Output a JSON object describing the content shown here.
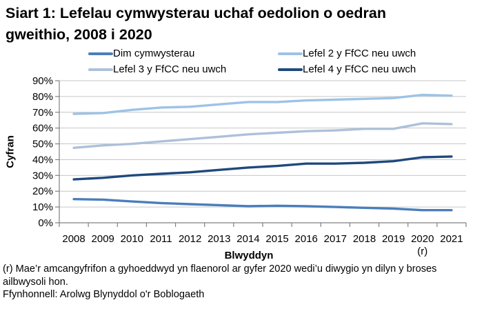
{
  "title": "Siart 1: Lefelau cymwysterau uchaf oedolion o oedran gweithio, 2008 i 2020",
  "footnotes": {
    "revision_note": "(r) Mae’r amcangyfrifon a gyhoeddwyd yn flaenorol ar gyfer 2020 wedi’u diwygio yn dilyn y broses ailbwysoli hon.",
    "source": "Ffynhonnell: Arolwg Blynyddol o'r Boblogaeth"
  },
  "chart_data": {
    "type": "line",
    "title": "Siart 1: Lefelau cymwysterau uchaf oedolion o oedran gweithio, 2008 i 2020",
    "categories": [
      "2008",
      "2009",
      "2010",
      "2011",
      "2012",
      "2013",
      "2014",
      "2015",
      "2016",
      "2017",
      "2018",
      "2019",
      "2020",
      "2021"
    ],
    "series": [
      {
        "name": "Dim cymwysterau",
        "color": "#4a7ebb",
        "values": [
          15,
          14.7,
          13.5,
          12.5,
          11.8,
          11.2,
          10.5,
          10.8,
          10.5,
          10,
          9.5,
          9,
          8,
          8
        ]
      },
      {
        "name": "Lefel 2 y FfCC neu uwch",
        "color": "#9dc3e6",
        "values": [
          69,
          69.5,
          71.5,
          73,
          73.5,
          75,
          76.5,
          76.5,
          77.5,
          78,
          78.5,
          79,
          81,
          80.5
        ]
      },
      {
        "name": "Lefel 3 y FfCC neu uwch",
        "color": "#aec0da",
        "values": [
          47.5,
          49,
          50,
          51.5,
          53,
          54.5,
          56,
          57,
          58,
          58.5,
          59.5,
          59.5,
          63,
          62.5
        ]
      },
      {
        "name": "Lefel 4 y FfCC neu uwch",
        "color": "#1f497d",
        "values": [
          27.5,
          28.5,
          30,
          31,
          32,
          33.5,
          35,
          36,
          37.5,
          37.5,
          38,
          39,
          41.5,
          42
        ]
      }
    ],
    "xlabel": "Blwyddyn",
    "ylabel": "Cyfran",
    "ylim": [
      0,
      90
    ],
    "yticks": [
      "0%",
      "10%",
      "20%",
      "30%",
      "40%",
      "50%",
      "60%",
      "70%",
      "80%",
      "90%"
    ],
    "x_note": {
      "category": "2020",
      "label": "(r)"
    },
    "grid": true,
    "legend_position": "top"
  }
}
